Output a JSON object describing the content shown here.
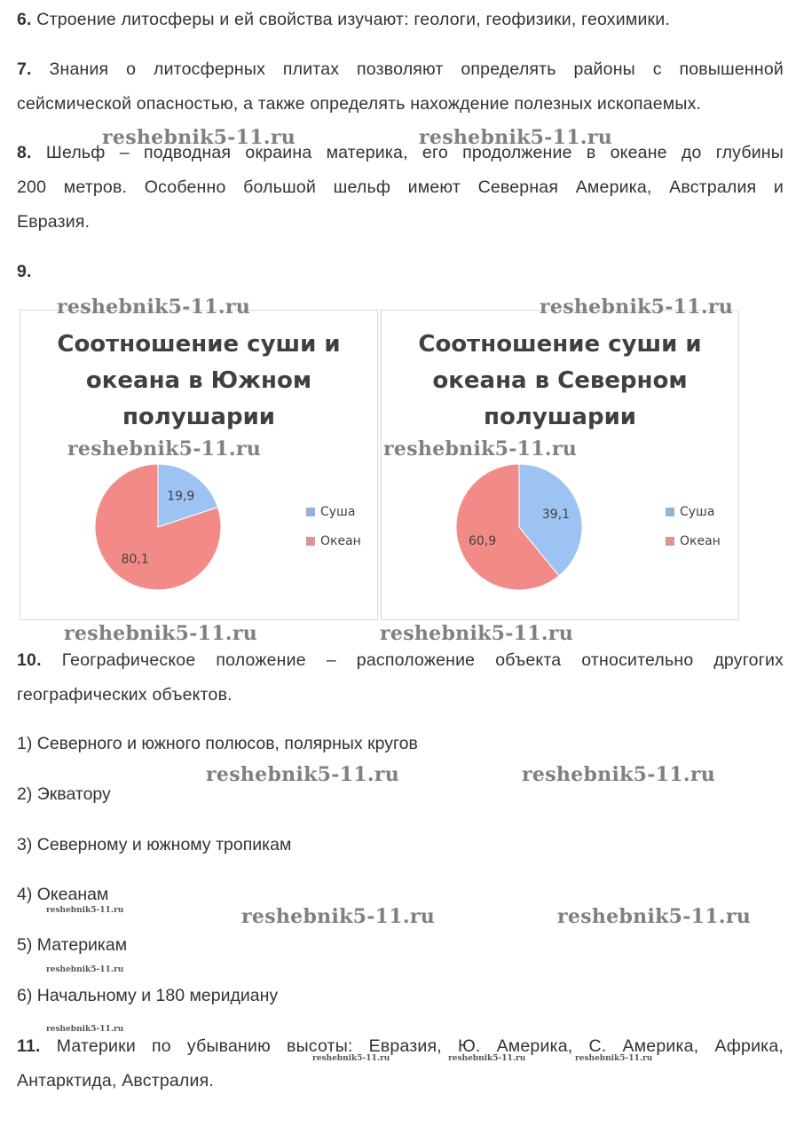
{
  "items": {
    "i6": {
      "num": "6.",
      "text": "Строение литосферы и ей свойства изучают: геологи, геофизики, геохимики."
    },
    "i7": {
      "num": "7.",
      "line1": "Знания о литосферных плитах позволяют определять районы с повышенной",
      "line2": "сейсмической опасностью, а также определять нахождение полезных ископаемых."
    },
    "i8": {
      "num": "8.",
      "line1": "Шельф – подводная окраина материка, его продолжение в океане до глубины",
      "line2": "200 метров. Особенно большой шельф имеют Северная Америка, Австралия и",
      "line3": "Евразия."
    },
    "i9": {
      "num": "9."
    },
    "i10": {
      "num": "10.",
      "line1": "Географическое положение – расположение объекта относительно другогих",
      "line2": "географических объектов."
    },
    "i11": {
      "num": "11.",
      "line1": "Материки по убыванию высоты: Евразия, Ю. Америка, С. Америка, Африка,",
      "line2": "Антарктида, Австралия."
    }
  },
  "list": [
    "1) Северного и южного полюсов, полярных кругов",
    "2) Экватору",
    "3) Северному и южному тропикам",
    "4) Океанам",
    "5) Материкам",
    "6) Начальному и 180 меридиану"
  ],
  "watermark": "reshebnik5-11.ru",
  "colors": {
    "land": "#9dc3f2",
    "ocean": "#f28b87",
    "text": "#333333"
  },
  "chart_data": [
    {
      "type": "pie",
      "title_lines": [
        "Соотношение суши и",
        "океана в Южном",
        "полушарии"
      ],
      "categories": [
        "Суша",
        "Океан"
      ],
      "values": [
        19.9,
        80.1
      ],
      "value_labels": [
        "19,9",
        "80,1"
      ],
      "legend": "right"
    },
    {
      "type": "pie",
      "title_lines": [
        "Соотношение суши и",
        "океана в Северном",
        "полушарии"
      ],
      "categories": [
        "Суша",
        "Океан"
      ],
      "values": [
        39.1,
        60.9
      ],
      "value_labels": [
        "39,1",
        "60,9"
      ],
      "legend": "right"
    }
  ]
}
